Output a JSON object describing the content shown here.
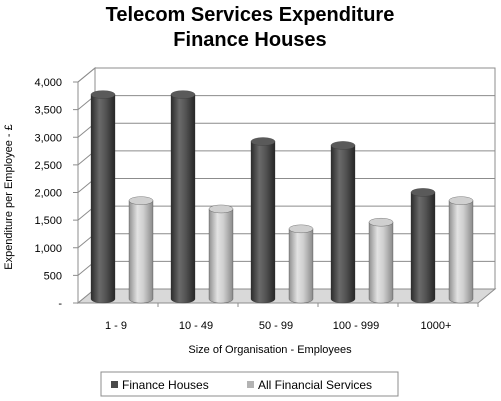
{
  "chart_data": {
    "type": "bar",
    "title_lines": [
      "Telecom Services Expenditure",
      "Finance Houses"
    ],
    "xlabel": "Size of Organisation - Employees",
    "ylabel": "Expenditure per Employee - £",
    "categories": [
      "1 - 9",
      "10 - 49",
      "50 - 99",
      "100 - 999",
      "1000+"
    ],
    "series": [
      {
        "name": "Finance Houses",
        "values": [
          3700,
          3700,
          2850,
          2780,
          1930
        ]
      },
      {
        "name": "All Financial Services",
        "values": [
          1780,
          1630,
          1270,
          1390,
          1780
        ]
      }
    ],
    "ylim": [
      0,
      4000
    ],
    "yticks": [
      0,
      500,
      1000,
      1500,
      2000,
      2500,
      3000,
      3500,
      4000
    ],
    "ytick_labels": [
      "-",
      "500",
      "1,000",
      "1,500",
      "2,000",
      "2,500",
      "3,000",
      "3,500",
      "4,000"
    ],
    "grid": true,
    "legend_position": "bottom",
    "colors": [
      "#4a4a4a",
      "#b3b3b3"
    ],
    "three_d": true
  }
}
